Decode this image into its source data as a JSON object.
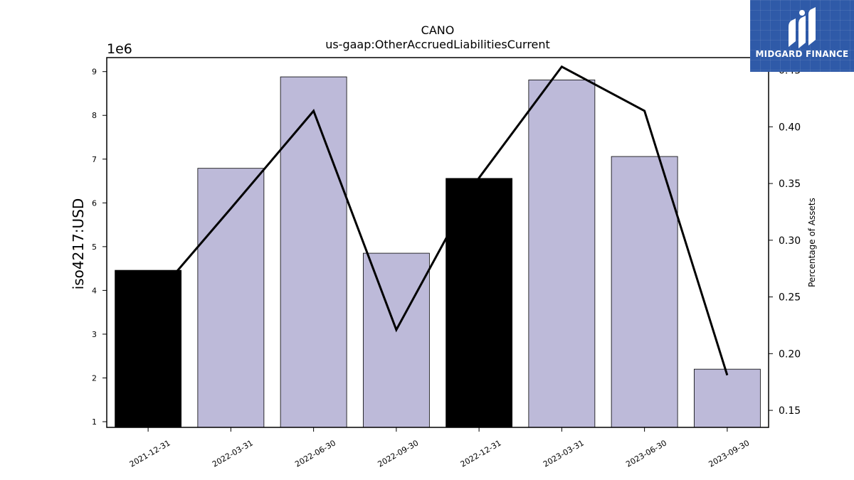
{
  "chart_data": {
    "type": "bar",
    "title": "CANO",
    "subtitle": "us-gaap:OtherAccruedLiabilitiesCurrent",
    "ylabel": "iso4217:USD",
    "y_offset_label": "1e6",
    "y2label": "Percentage of Assets",
    "categories": [
      "2021-12-31",
      "2022-03-31",
      "2022-06-30",
      "2022-09-30",
      "2022-12-31",
      "2023-03-31",
      "2023-06-30",
      "2023-09-30"
    ],
    "bar_values": [
      4.46,
      6.79,
      8.88,
      4.85,
      6.56,
      8.81,
      7.06,
      2.2
    ],
    "bar_colors": [
      "#000000",
      "#bdbad9",
      "#bdbad9",
      "#bdbad9",
      "#000000",
      "#bdbad9",
      "#bdbad9",
      "#bdbad9"
    ],
    "bar_scale": 1000000,
    "ylim": [
      0.87,
      9.32
    ],
    "yticks": [
      1,
      2,
      3,
      4,
      5,
      6,
      7,
      8,
      9
    ],
    "line_values": [
      0.243,
      0.328,
      0.414,
      0.221,
      0.355,
      0.453,
      0.414,
      0.181
    ],
    "y2lim": [
      0.135,
      0.461
    ],
    "y2ticks": [
      "0.15",
      "0.20",
      "0.25",
      "0.30",
      "0.35",
      "0.40",
      "0.45"
    ],
    "line_color": "#000000",
    "grid": false
  },
  "logo": {
    "text": "MIDGARD FINANCE",
    "background": "#2f5aa8"
  }
}
